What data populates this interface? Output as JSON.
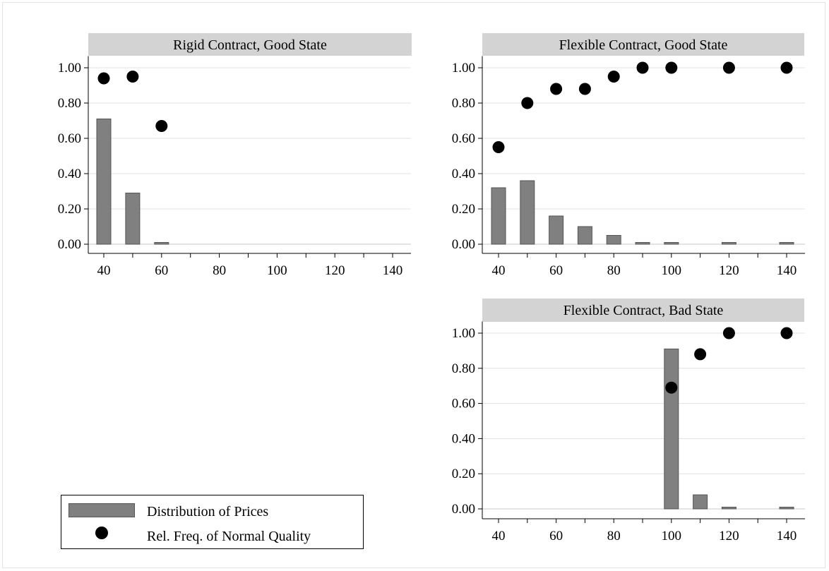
{
  "colors": {
    "bar": "#808080",
    "bar_edge": "#555555",
    "marker": "#000000",
    "title_bg": "#d3d3d3",
    "grid": "#e0e0e0"
  },
  "legend": {
    "bar_label": "Distribution of Prices",
    "marker_label": "Rel. Freq. of Normal Quality",
    "placement": "bottom-left"
  },
  "chart_data": [
    {
      "type": "bar+scatter",
      "title": "Rigid Contract, Good State",
      "xlabel": "",
      "ylabel": "",
      "xlim": [
        35,
        145
      ],
      "ylim": [
        0,
        1.05
      ],
      "xticks": [
        40,
        60,
        80,
        100,
        120,
        140
      ],
      "yticks": [
        "0.00",
        "0.20",
        "0.40",
        "0.60",
        "0.80",
        "1.00"
      ],
      "grid": true,
      "series": [
        {
          "name": "Distribution of Prices",
          "type": "bar",
          "x": [
            40,
            50,
            60
          ],
          "values": [
            0.71,
            0.29,
            0.01
          ]
        },
        {
          "name": "Rel. Freq. of Normal Quality",
          "type": "scatter",
          "x": [
            40,
            50,
            60
          ],
          "values": [
            0.94,
            0.95,
            0.67
          ]
        }
      ]
    },
    {
      "type": "bar+scatter",
      "title": "Flexible Contract, Good State",
      "xlabel": "",
      "ylabel": "",
      "xlim": [
        35,
        145
      ],
      "ylim": [
        0,
        1.05
      ],
      "xticks": [
        40,
        60,
        80,
        100,
        120,
        140
      ],
      "yticks": [
        "0.00",
        "0.20",
        "0.40",
        "0.60",
        "0.80",
        "1.00"
      ],
      "grid": true,
      "series": [
        {
          "name": "Distribution of Prices",
          "type": "bar",
          "x": [
            40,
            50,
            60,
            70,
            80,
            90,
            100,
            120,
            140
          ],
          "values": [
            0.32,
            0.36,
            0.16,
            0.1,
            0.05,
            0.01,
            0.01,
            0.01,
            0.01
          ]
        },
        {
          "name": "Rel. Freq. of Normal Quality",
          "type": "scatter",
          "x": [
            40,
            50,
            60,
            70,
            80,
            90,
            100,
            120,
            140
          ],
          "values": [
            0.55,
            0.8,
            0.88,
            0.88,
            0.95,
            1.0,
            1.0,
            1.0,
            1.0
          ]
        }
      ]
    },
    {
      "type": "bar+scatter",
      "title": "Flexible Contract, Bad State",
      "xlabel": "",
      "ylabel": "",
      "xlim": [
        35,
        145
      ],
      "ylim": [
        0,
        1.05
      ],
      "xticks": [
        40,
        60,
        80,
        100,
        120,
        140
      ],
      "yticks": [
        "0.00",
        "0.20",
        "0.40",
        "0.60",
        "0.80",
        "1.00"
      ],
      "grid": true,
      "series": [
        {
          "name": "Distribution of Prices",
          "type": "bar",
          "x": [
            100,
            110,
            120,
            140
          ],
          "values": [
            0.91,
            0.08,
            0.01,
            0.01
          ]
        },
        {
          "name": "Rel. Freq. of Normal Quality",
          "type": "scatter",
          "x": [
            100,
            110,
            120,
            140
          ],
          "values": [
            0.69,
            0.88,
            1.0,
            1.0
          ]
        }
      ]
    }
  ]
}
